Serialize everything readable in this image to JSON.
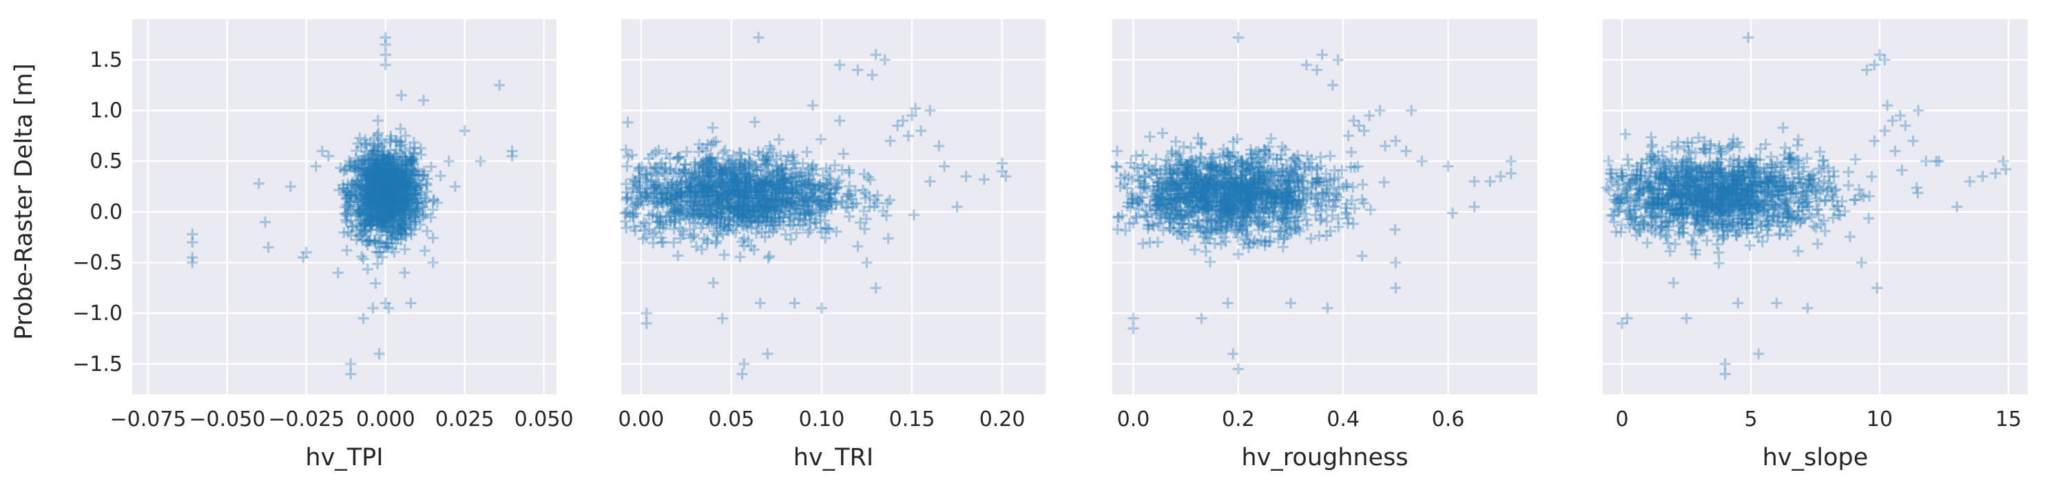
{
  "chart_data": {
    "type": "scatter",
    "marker": "+",
    "color": "#1f77b4",
    "plot_background": "#eaeaf2",
    "grid_color": "#ffffff",
    "shared_y": true,
    "ylabel": "Probe-Raster Delta [m]",
    "ylim": [
      -1.8,
      1.9
    ],
    "yticks": [
      -1.5,
      -1.0,
      -0.5,
      0.0,
      0.5,
      1.0,
      1.5
    ],
    "ytick_labels": [
      "−1.5",
      "−1.0",
      "−0.5",
      "0.0",
      "0.5",
      "1.0",
      "1.5"
    ],
    "panels": [
      {
        "xlabel": "hv_TPI",
        "xlim": [
          -0.08,
          0.054
        ],
        "xticks": [
          -0.075,
          -0.05,
          -0.025,
          0.0,
          0.025,
          0.05
        ],
        "xtick_labels": [
          "−0.075",
          "−0.050",
          "−0.025",
          "0.000",
          "0.025",
          "0.050"
        ],
        "cloud": {
          "cx": 0.0,
          "sx": 0.0055,
          "cy": 0.18,
          "sy": 0.22,
          "n": 1400
        },
        "points": [
          [
            -0.061,
            -0.5
          ],
          [
            -0.061,
            -0.45
          ],
          [
            -0.061,
            -0.3
          ],
          [
            -0.061,
            -0.22
          ],
          [
            -0.04,
            0.28
          ],
          [
            -0.038,
            -0.1
          ],
          [
            -0.037,
            -0.35
          ],
          [
            -0.03,
            0.25
          ],
          [
            -0.026,
            -0.45
          ],
          [
            -0.025,
            -0.4
          ],
          [
            -0.022,
            0.45
          ],
          [
            -0.02,
            0.6
          ],
          [
            -0.018,
            0.55
          ],
          [
            -0.015,
            -0.6
          ],
          [
            -0.011,
            -1.5
          ],
          [
            -0.011,
            -1.6
          ],
          [
            -0.007,
            -1.05
          ],
          [
            -0.004,
            -0.95
          ],
          [
            -0.002,
            -1.4
          ],
          [
            0.0,
            -0.9
          ],
          [
            0.001,
            -0.95
          ],
          [
            0.0,
            1.45
          ],
          [
            0.0,
            1.55
          ],
          [
            0.0,
            1.65
          ],
          [
            0.0,
            1.72
          ],
          [
            0.005,
            1.15
          ],
          [
            0.012,
            1.1
          ],
          [
            0.015,
            -0.5
          ],
          [
            0.02,
            0.5
          ],
          [
            0.022,
            0.25
          ],
          [
            0.025,
            0.8
          ],
          [
            0.03,
            0.5
          ],
          [
            0.036,
            1.25
          ],
          [
            0.04,
            0.55
          ],
          [
            0.04,
            0.6
          ],
          [
            0.008,
            -0.9
          ],
          [
            0.006,
            -0.6
          ]
        ]
      },
      {
        "xlabel": "hv_TRI",
        "xlim": [
          -0.011,
          0.224
        ],
        "xticks": [
          0.0,
          0.05,
          0.1,
          0.15,
          0.2
        ],
        "xtick_labels": [
          "0.00",
          "0.05",
          "0.10",
          "0.15",
          "0.20"
        ],
        "cloud": {
          "cx": 0.052,
          "sx": 0.03,
          "cy": 0.17,
          "sy": 0.2,
          "n": 1500
        },
        "points": [
          [
            0.142,
            0.85
          ],
          [
            0.145,
            0.9
          ],
          [
            0.15,
            0.95
          ],
          [
            0.155,
            0.8
          ],
          [
            0.148,
            0.75
          ],
          [
            0.16,
            1.0
          ],
          [
            0.138,
            0.7
          ],
          [
            0.152,
            1.02
          ],
          [
            0.12,
            1.4
          ],
          [
            0.13,
            1.55
          ],
          [
            0.135,
            1.5
          ],
          [
            0.128,
            1.35
          ],
          [
            0.11,
            1.45
          ],
          [
            0.165,
            0.65
          ],
          [
            0.18,
            0.35
          ],
          [
            0.19,
            0.32
          ],
          [
            0.2,
            0.4
          ],
          [
            0.2,
            0.48
          ],
          [
            0.202,
            0.35
          ],
          [
            0.175,
            0.05
          ],
          [
            0.003,
            -1.0
          ],
          [
            0.003,
            -1.1
          ],
          [
            0.04,
            -0.7
          ],
          [
            0.045,
            -1.05
          ],
          [
            0.057,
            -1.5
          ],
          [
            0.056,
            -1.6
          ],
          [
            0.065,
            1.72
          ],
          [
            0.066,
            -0.9
          ],
          [
            0.07,
            -1.4
          ],
          [
            0.085,
            -0.9
          ],
          [
            0.1,
            -0.95
          ],
          [
            0.13,
            -0.75
          ],
          [
            0.125,
            -0.5
          ],
          [
            0.16,
            0.3
          ],
          [
            0.168,
            0.45
          ],
          [
            0.11,
            0.9
          ],
          [
            0.095,
            1.05
          ]
        ]
      },
      {
        "xlabel": "hv_roughness",
        "xlim": [
          -0.04,
          0.77
        ],
        "xticks": [
          0.0,
          0.2,
          0.4,
          0.6
        ],
        "xtick_labels": [
          "0.0",
          "0.2",
          "0.4",
          "0.6"
        ],
        "cloud": {
          "cx": 0.18,
          "sx": 0.1,
          "cy": 0.17,
          "sy": 0.2,
          "n": 1500
        },
        "points": [
          [
            0.42,
            0.9
          ],
          [
            0.43,
            0.85
          ],
          [
            0.45,
            0.95
          ],
          [
            0.44,
            0.8
          ],
          [
            0.47,
            1.0
          ],
          [
            0.41,
            0.75
          ],
          [
            0.38,
            1.25
          ],
          [
            0.35,
            1.4
          ],
          [
            0.33,
            1.45
          ],
          [
            0.36,
            1.55
          ],
          [
            0.39,
            1.5
          ],
          [
            0.5,
            0.7
          ],
          [
            0.55,
            0.5
          ],
          [
            0.6,
            0.45
          ],
          [
            0.65,
            0.3
          ],
          [
            0.7,
            0.35
          ],
          [
            0.72,
            0.38
          ],
          [
            0.72,
            0.5
          ],
          [
            0.68,
            0.3
          ],
          [
            0.65,
            0.05
          ],
          [
            0.0,
            -1.05
          ],
          [
            0.0,
            -1.15
          ],
          [
            0.13,
            -1.05
          ],
          [
            0.18,
            -0.9
          ],
          [
            0.19,
            -1.4
          ],
          [
            0.2,
            -1.55
          ],
          [
            0.2,
            1.72
          ],
          [
            0.3,
            -0.9
          ],
          [
            0.37,
            -0.95
          ],
          [
            0.5,
            -0.75
          ],
          [
            0.5,
            -0.5
          ],
          [
            0.52,
            0.6
          ],
          [
            0.48,
            0.65
          ],
          [
            0.53,
            1.0
          ]
        ]
      },
      {
        "xlabel": "hv_slope",
        "xlim": [
          -0.75,
          15.75
        ],
        "xticks": [
          0,
          5,
          10,
          15
        ],
        "xtick_labels": [
          "0",
          "5",
          "10",
          "15"
        ],
        "cloud": {
          "cx": 3.6,
          "sx": 2.2,
          "cy": 0.17,
          "sy": 0.2,
          "n": 1500
        },
        "points": [
          [
            10.2,
            0.8
          ],
          [
            10.5,
            0.9
          ],
          [
            10.8,
            0.95
          ],
          [
            11.0,
            0.85
          ],
          [
            11.5,
            1.0
          ],
          [
            9.8,
            0.7
          ],
          [
            10.3,
            1.05
          ],
          [
            9.5,
            1.4
          ],
          [
            10.0,
            1.55
          ],
          [
            10.2,
            1.5
          ],
          [
            9.8,
            1.45
          ],
          [
            11.8,
            0.5
          ],
          [
            12.2,
            0.5
          ],
          [
            13.5,
            0.3
          ],
          [
            14.0,
            0.35
          ],
          [
            14.5,
            0.38
          ],
          [
            14.8,
            0.5
          ],
          [
            14.9,
            0.42
          ],
          [
            13.0,
            0.05
          ],
          [
            0.0,
            -1.1
          ],
          [
            0.2,
            -1.05
          ],
          [
            2.0,
            -0.7
          ],
          [
            2.5,
            -1.05
          ],
          [
            4.0,
            -1.5
          ],
          [
            4.0,
            -1.6
          ],
          [
            4.5,
            -0.9
          ],
          [
            4.9,
            1.72
          ],
          [
            5.3,
            -1.4
          ],
          [
            6.0,
            -0.9
          ],
          [
            7.2,
            -0.95
          ],
          [
            9.9,
            -0.75
          ],
          [
            9.3,
            -0.5
          ],
          [
            10.6,
            0.6
          ],
          [
            11.3,
            0.7
          ],
          [
            12.3,
            0.5
          ]
        ]
      }
    ]
  }
}
